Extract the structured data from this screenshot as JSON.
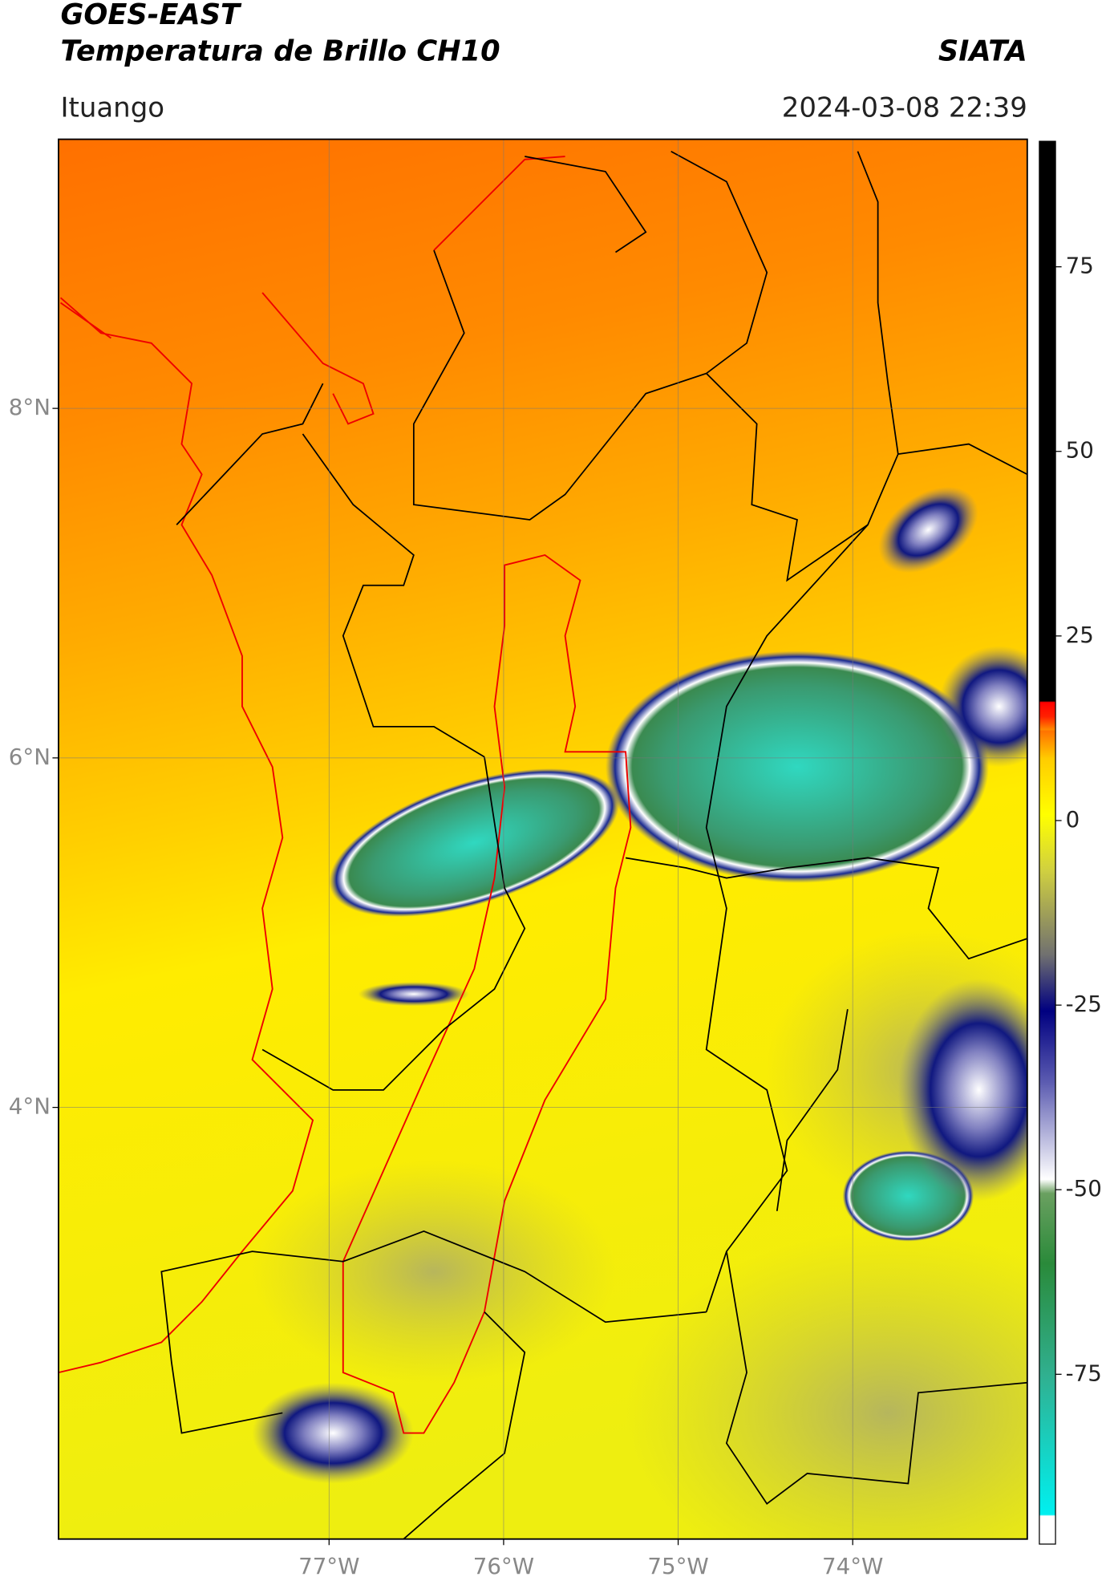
{
  "header": {
    "title": "GOES-EAST",
    "subtitle": "Temperatura de Brillo CH10",
    "source": "SIATA",
    "location": "Ituango",
    "datetime": "2024-03-08 22:39"
  },
  "map": {
    "xlim": [
      -78.55,
      -73.0
    ],
    "ylim": [
      1.53,
      9.54
    ],
    "xticks": [
      {
        "value": -77,
        "label": "77°W"
      },
      {
        "value": -76,
        "label": "76°W"
      },
      {
        "value": -75,
        "label": "75°W"
      },
      {
        "value": -74,
        "label": "74°W"
      }
    ],
    "yticks": [
      {
        "value": 8,
        "label": "8°N"
      },
      {
        "value": 6,
        "label": "6°N"
      },
      {
        "value": 4,
        "label": "4°N"
      }
    ],
    "grid": true
  },
  "colorbar": {
    "lim": [
      -98,
      92
    ],
    "ticks": [
      75,
      50,
      25,
      0,
      -25,
      -50,
      -75
    ]
  }
}
